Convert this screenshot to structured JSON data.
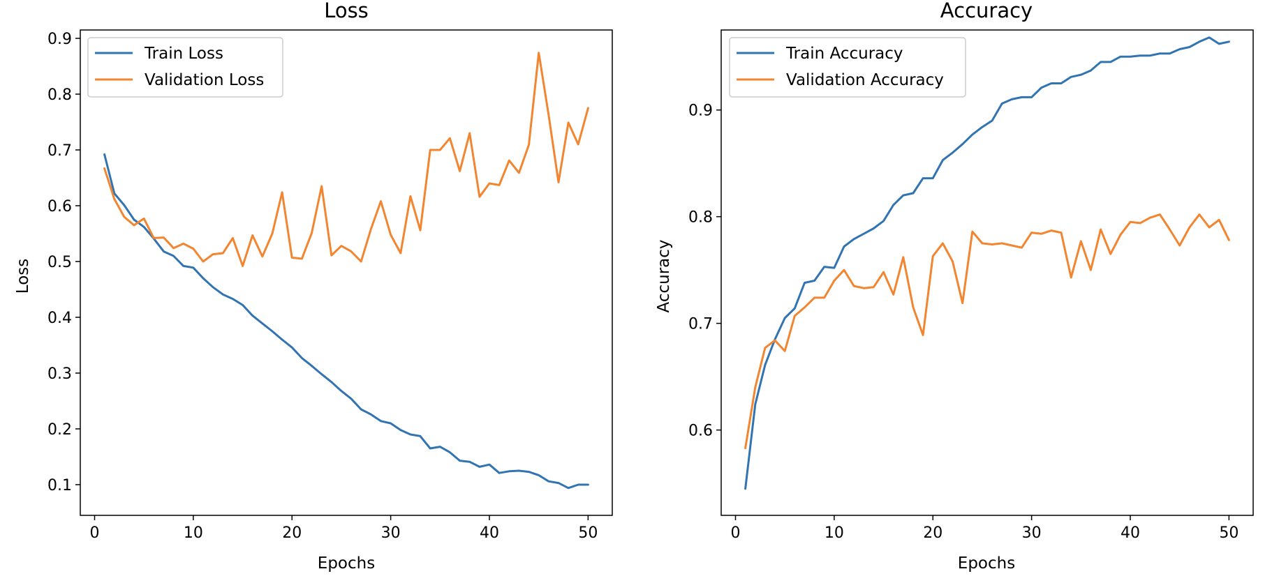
{
  "chart_data": [
    {
      "type": "line",
      "title": "Loss",
      "xlabel": "Epochs",
      "ylabel": "Loss",
      "xlim": [
        -1.45,
        52.45
      ],
      "ylim": [
        0.045,
        0.915
      ],
      "xticks": [
        0,
        10,
        20,
        30,
        40,
        50
      ],
      "yticks": [
        0.1,
        0.2,
        0.3,
        0.4,
        0.5,
        0.6,
        0.7,
        0.8,
        0.9
      ],
      "grid": false,
      "legend": "top-left",
      "x": [
        1,
        2,
        3,
        4,
        5,
        6,
        7,
        8,
        9,
        10,
        11,
        12,
        13,
        14,
        15,
        16,
        17,
        18,
        19,
        20,
        21,
        22,
        23,
        24,
        25,
        26,
        27,
        28,
        29,
        30,
        31,
        32,
        33,
        34,
        35,
        36,
        37,
        38,
        39,
        40,
        41,
        42,
        43,
        44,
        45,
        46,
        47,
        48,
        49,
        50
      ],
      "series": [
        {
          "name": "Train Loss",
          "color": "#3274b1",
          "values": [
            0.692,
            0.622,
            0.601,
            0.575,
            0.562,
            0.541,
            0.518,
            0.51,
            0.492,
            0.489,
            0.47,
            0.454,
            0.441,
            0.433,
            0.422,
            0.403,
            0.389,
            0.375,
            0.36,
            0.346,
            0.327,
            0.313,
            0.298,
            0.284,
            0.268,
            0.254,
            0.235,
            0.226,
            0.214,
            0.21,
            0.198,
            0.19,
            0.187,
            0.165,
            0.168,
            0.158,
            0.143,
            0.141,
            0.132,
            0.136,
            0.121,
            0.124,
            0.125,
            0.123,
            0.117,
            0.106,
            0.103,
            0.094,
            0.1,
            0.1
          ]
        },
        {
          "name": "Validation Loss",
          "color": "#f28530",
          "values": [
            0.667,
            0.612,
            0.58,
            0.565,
            0.577,
            0.542,
            0.543,
            0.524,
            0.532,
            0.523,
            0.5,
            0.513,
            0.515,
            0.542,
            0.492,
            0.547,
            0.509,
            0.55,
            0.624,
            0.507,
            0.505,
            0.551,
            0.635,
            0.511,
            0.528,
            0.518,
            0.5,
            0.558,
            0.608,
            0.548,
            0.515,
            0.617,
            0.556,
            0.7,
            0.7,
            0.721,
            0.662,
            0.73,
            0.616,
            0.64,
            0.637,
            0.681,
            0.659,
            0.709,
            0.874,
            0.763,
            0.642,
            0.749,
            0.71,
            0.775
          ]
        }
      ]
    },
    {
      "type": "line",
      "title": "Accuracy",
      "xlabel": "Epochs",
      "ylabel": "Accuracy",
      "xlim": [
        -1.45,
        52.45
      ],
      "ylim": [
        0.52,
        0.975
      ],
      "xticks": [
        0,
        10,
        20,
        30,
        40,
        50
      ],
      "yticks": [
        0.6,
        0.7,
        0.8,
        0.9
      ],
      "grid": false,
      "legend": "top-left",
      "x": [
        1,
        2,
        3,
        4,
        5,
        6,
        7,
        8,
        9,
        10,
        11,
        12,
        13,
        14,
        15,
        16,
        17,
        18,
        19,
        20,
        21,
        22,
        23,
        24,
        25,
        26,
        27,
        28,
        29,
        30,
        31,
        32,
        33,
        34,
        35,
        36,
        37,
        38,
        39,
        40,
        41,
        42,
        43,
        44,
        45,
        46,
        47,
        48,
        49,
        50
      ],
      "series": [
        {
          "name": "Train Accuracy",
          "color": "#3274b1",
          "values": [
            0.545,
            0.624,
            0.661,
            0.685,
            0.705,
            0.714,
            0.738,
            0.74,
            0.753,
            0.752,
            0.772,
            0.779,
            0.784,
            0.789,
            0.796,
            0.811,
            0.82,
            0.822,
            0.836,
            0.836,
            0.853,
            0.86,
            0.868,
            0.877,
            0.884,
            0.89,
            0.906,
            0.91,
            0.912,
            0.912,
            0.921,
            0.925,
            0.925,
            0.931,
            0.933,
            0.937,
            0.945,
            0.945,
            0.95,
            0.95,
            0.951,
            0.951,
            0.953,
            0.953,
            0.957,
            0.959,
            0.964,
            0.968,
            0.962,
            0.964
          ]
        },
        {
          "name": "Validation Accuracy",
          "color": "#f28530",
          "values": [
            0.583,
            0.64,
            0.677,
            0.684,
            0.674,
            0.707,
            0.715,
            0.724,
            0.724,
            0.74,
            0.75,
            0.735,
            0.733,
            0.734,
            0.748,
            0.727,
            0.762,
            0.715,
            0.689,
            0.763,
            0.775,
            0.758,
            0.719,
            0.786,
            0.775,
            0.774,
            0.775,
            0.773,
            0.771,
            0.785,
            0.784,
            0.787,
            0.785,
            0.743,
            0.777,
            0.75,
            0.788,
            0.765,
            0.783,
            0.795,
            0.794,
            0.799,
            0.802,
            0.788,
            0.773,
            0.79,
            0.802,
            0.79,
            0.797,
            0.778
          ]
        }
      ]
    }
  ]
}
